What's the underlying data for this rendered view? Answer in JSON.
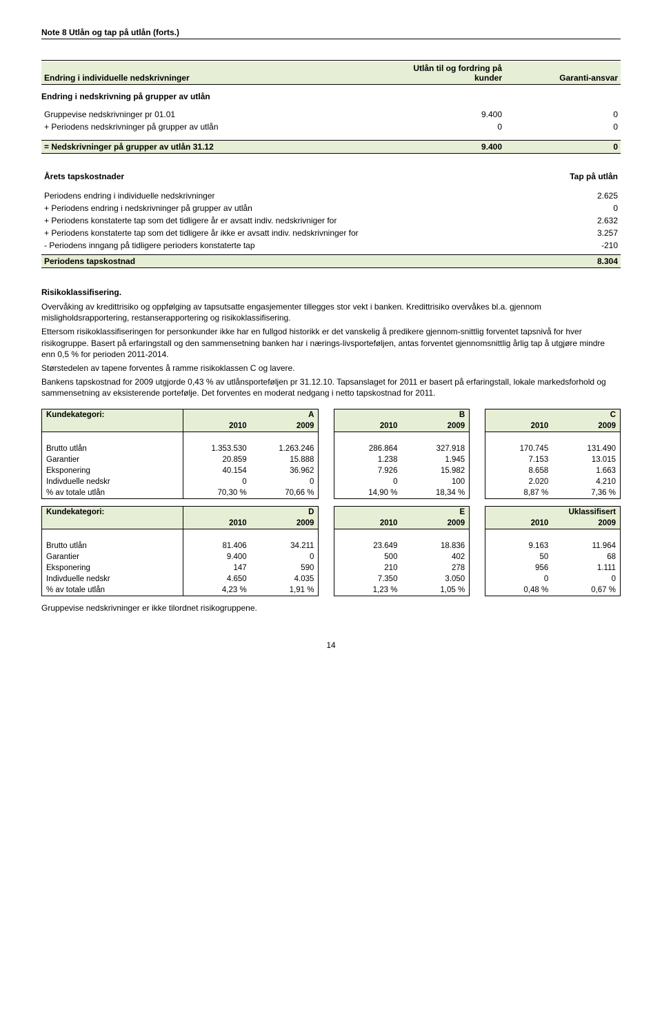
{
  "title": "Note 8 Utlån og tap på utlån (forts.)",
  "t1": {
    "header_left": "Endring i individuelle nedskrivninger",
    "header_c1": "Utlån til og fordring på kunder",
    "header_c2": "Garanti-ansvar",
    "subheader": "Endring i nedskrivning på grupper av utlån",
    "rows": [
      {
        "label": "Gruppevise nedskrivninger pr 01.01",
        "v1": "9.400",
        "v2": "0"
      },
      {
        "label": "+ Periodens nedskrivninger på grupper av utlån",
        "v1": "0",
        "v2": "0"
      }
    ],
    "total_label": "= Nedskrivninger på grupper av utlån 31.12",
    "total_v1": "9.400",
    "total_v2": "0"
  },
  "t2": {
    "header_left": "Årets tapskostnader",
    "header_c1": "Tap på utlån",
    "rows": [
      {
        "label": "Periodens endring i individuelle nedskrivninger",
        "v": "2.625"
      },
      {
        "label": "+ Periodens endring i nedskrivninger på grupper av utlån",
        "v": "0"
      },
      {
        "label": "+ Periodens konstaterte tap som det tidligere år er avsatt indiv. nedskrivniger for",
        "v": "2.632"
      },
      {
        "label": "+ Periodens konstaterte tap som det tidligere år ikke er avsatt indiv. nedskrivninger for",
        "v": "3.257"
      },
      {
        "label": "- Periodens inngang på tidligere perioders konstaterte tap",
        "v": "-210"
      }
    ],
    "total_label": "Periodens tapskostnad",
    "total_v": "8.304"
  },
  "risk": {
    "heading": "Risikoklassifisering.",
    "paras": [
      "Overvåking av kredittrisiko og oppfølging av tapsutsatte engasjementer tillegges stor vekt i banken. Kredittrisiko overvåkes bl.a. gjennom misligholdsrapportering, restanserapportering og risikoklassifisering.",
      "Ettersom risikoklassifiseringen for personkunder ikke har en fullgod historikk er det vanskelig å predikere gjennom-snittlig forventet tapsnivå for hver risikogruppe. Basert på erfaringstall og den sammensetning banken har i nærings-livsporteføljen, antas forventet gjennomsnittlig årlig tap å utgjøre mindre enn 0,5 % for perioden 2011-2014.",
      "Størstedelen av tapene forventes å ramme risikoklassen C og lavere.",
      "Bankens tapskostnad for 2009 utgjorde 0,43 % av utlånsporteføljen pr 31.12.10. Tapsanslaget for 2011 er basert på erfaringstall, lokale markedsforhold og sammensetning av eksisterende portefølje. Det forventes en moderat nedgang i netto tapskostnad for 2011."
    ]
  },
  "cat_top": {
    "header": "Kundekategori:",
    "groups": [
      "A",
      "B",
      "C"
    ],
    "years": [
      "2010",
      "2009"
    ],
    "row_labels": [
      "Brutto utlån",
      "Garantier",
      "Eksponering",
      "Indivduelle nedskr",
      "% av totale utlån"
    ],
    "data": [
      [
        [
          "1.353.530",
          "1.263.246"
        ],
        [
          "286.864",
          "327.918"
        ],
        [
          "170.745",
          "131.490"
        ]
      ],
      [
        [
          "20.859",
          "15.888"
        ],
        [
          "1.238",
          "1.945"
        ],
        [
          "7.153",
          "13.015"
        ]
      ],
      [
        [
          "40.154",
          "36.962"
        ],
        [
          "7.926",
          "15.982"
        ],
        [
          "8.658",
          "1.663"
        ]
      ],
      [
        [
          "0",
          "0"
        ],
        [
          "0",
          "100"
        ],
        [
          "2.020",
          "4.210"
        ]
      ],
      [
        [
          "70,30 %",
          "70,66 %"
        ],
        [
          "14,90 %",
          "18,34 %"
        ],
        [
          "8,87 %",
          "7,36 %"
        ]
      ]
    ]
  },
  "cat_bottom": {
    "header": "Kundekategori:",
    "groups": [
      "D",
      "E",
      "Uklassifisert"
    ],
    "years": [
      "2010",
      "2009"
    ],
    "row_labels": [
      "Brutto utlån",
      "Garantier",
      "Eksponering",
      "Indivduelle nedskr",
      "% av totale utlån"
    ],
    "data": [
      [
        [
          "81.406",
          "34.211"
        ],
        [
          "23.649",
          "18.836"
        ],
        [
          "9.163",
          "11.964"
        ]
      ],
      [
        [
          "9.400",
          "0"
        ],
        [
          "500",
          "402"
        ],
        [
          "50",
          "68"
        ]
      ],
      [
        [
          "147",
          "590"
        ],
        [
          "210",
          "278"
        ],
        [
          "956",
          "1.111"
        ]
      ],
      [
        [
          "4.650",
          "4.035"
        ],
        [
          "7.350",
          "3.050"
        ],
        [
          "0",
          "0"
        ]
      ],
      [
        [
          "4,23 %",
          "1,91 %"
        ],
        [
          "1,23 %",
          "1,05 %"
        ],
        [
          "0,48 %",
          "0,67 %"
        ]
      ]
    ]
  },
  "footer_note": "Gruppevise nedskrivninger er ikke tilordnet risikogruppene.",
  "page_number": "14"
}
